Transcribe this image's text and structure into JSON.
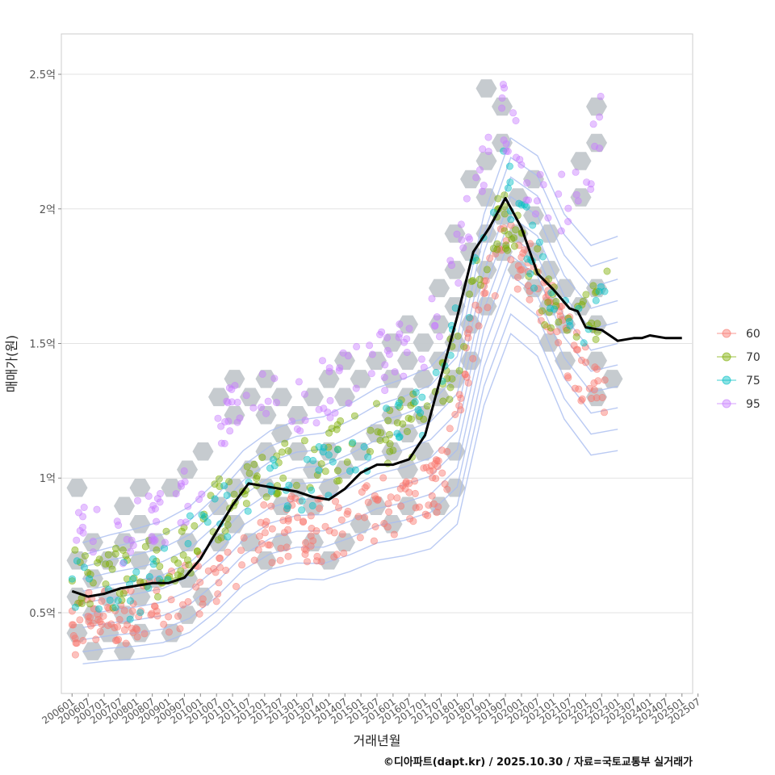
{
  "chart_data": {
    "type": "scatter",
    "title": "",
    "xlabel": "거래년월",
    "ylabel": "매매가(원)",
    "ylim": [
      0.2,
      2.65
    ],
    "x_range_months": [
      -4,
      232
    ],
    "y_ticks": [
      {
        "value": 0.5,
        "label": "0.5억"
      },
      {
        "value": 1.0,
        "label": "1억"
      },
      {
        "value": 1.5,
        "label": "1.5억"
      },
      {
        "value": 2.0,
        "label": "2억"
      },
      {
        "value": 2.5,
        "label": "2.5억"
      }
    ],
    "x_ticks": [
      "200601",
      "200607",
      "200701",
      "200707",
      "200801",
      "200807",
      "200901",
      "200907",
      "201001",
      "201007",
      "201101",
      "201107",
      "201201",
      "201207",
      "201301",
      "201307",
      "201401",
      "201407",
      "201501",
      "201507",
      "201601",
      "201607",
      "201701",
      "201707",
      "201801",
      "201807",
      "201901",
      "201907",
      "202001",
      "202007",
      "202101",
      "202107",
      "202201",
      "202207",
      "202301",
      "202307",
      "202401",
      "202407",
      "202501",
      "202507"
    ],
    "legend": {
      "position": "right",
      "entries": [
        {
          "name": "60",
          "color": "#F8766D"
        },
        {
          "name": "70",
          "color": "#7CAE00"
        },
        {
          "name": "75",
          "color": "#00BFC4"
        },
        {
          "name": "95",
          "color": "#C77CFF"
        }
      ]
    },
    "colors": {
      "hex": "#c3c8cc",
      "contour": "#a9bdf0",
      "trend": "#000000",
      "grid": "#e3e3e3"
    },
    "trend_line": {
      "name": "moving average price",
      "x_months": [
        0,
        6,
        12,
        18,
        24,
        30,
        36,
        42,
        48,
        54,
        60,
        66,
        72,
        78,
        84,
        90,
        96,
        102,
        108,
        114,
        120,
        126,
        132,
        138,
        144,
        150,
        156,
        162,
        168,
        174,
        180,
        186,
        189,
        192,
        198,
        204,
        210,
        213,
        216,
        222,
        228
      ],
      "values": [
        0.58,
        0.56,
        0.57,
        0.59,
        0.6,
        0.61,
        0.61,
        0.63,
        0.7,
        0.8,
        0.9,
        0.98,
        0.97,
        0.96,
        0.95,
        0.93,
        0.92,
        0.96,
        1.02,
        1.05,
        1.05,
        1.07,
        1.16,
        1.38,
        1.6,
        1.84,
        1.93,
        2.04,
        1.93,
        1.76,
        1.7,
        1.63,
        1.62,
        1.56,
        1.55,
        1.51,
        1.52,
        1.52,
        1.53,
        1.52,
        1.52
      ]
    },
    "series_centers": [
      {
        "name": "60",
        "points": [
          [
            0,
            0.45
          ],
          [
            10,
            0.48
          ],
          [
            20,
            0.5
          ],
          [
            30,
            0.52
          ],
          [
            40,
            0.55
          ],
          [
            50,
            0.62
          ],
          [
            60,
            0.7
          ],
          [
            70,
            0.78
          ],
          [
            80,
            0.82
          ],
          [
            90,
            0.8
          ],
          [
            100,
            0.83
          ],
          [
            110,
            0.88
          ],
          [
            120,
            0.9
          ],
          [
            130,
            0.95
          ],
          [
            140,
            1.0
          ],
          [
            150,
            1.55
          ],
          [
            160,
            1.85
          ],
          [
            170,
            1.8
          ],
          [
            180,
            1.6
          ],
          [
            190,
            1.4
          ],
          [
            200,
            1.35
          ]
        ]
      },
      {
        "name": "70",
        "points": [
          [
            0,
            0.62
          ],
          [
            10,
            0.63
          ],
          [
            20,
            0.64
          ],
          [
            30,
            0.66
          ],
          [
            40,
            0.72
          ],
          [
            50,
            0.82
          ],
          [
            60,
            0.95
          ],
          [
            70,
            1.0
          ],
          [
            80,
            1.02
          ],
          [
            90,
            1.05
          ],
          [
            100,
            1.1
          ],
          [
            110,
            1.15
          ],
          [
            120,
            1.18
          ],
          [
            130,
            1.2
          ],
          [
            140,
            1.35
          ],
          [
            150,
            1.7
          ],
          [
            160,
            1.95
          ],
          [
            170,
            1.85
          ],
          [
            180,
            1.6
          ],
          [
            190,
            1.55
          ],
          [
            200,
            1.65
          ]
        ]
      },
      {
        "name": "75",
        "points": [
          [
            0,
            0.6
          ],
          [
            10,
            0.6
          ],
          [
            20,
            0.58
          ],
          [
            30,
            0.62
          ],
          [
            40,
            0.7
          ],
          [
            50,
            0.82
          ],
          [
            60,
            0.92
          ],
          [
            70,
            0.98
          ],
          [
            80,
            0.98
          ],
          [
            90,
            1.0
          ],
          [
            100,
            1.08
          ],
          [
            110,
            1.12
          ],
          [
            120,
            1.18
          ],
          [
            130,
            1.22
          ],
          [
            140,
            1.4
          ],
          [
            150,
            1.75
          ],
          [
            160,
            2.15
          ],
          [
            170,
            1.9
          ],
          [
            180,
            1.62
          ],
          [
            190,
            1.55
          ],
          [
            200,
            1.65
          ]
        ]
      },
      {
        "name": "95",
        "points": [
          [
            0,
            0.85
          ],
          [
            10,
            0.82
          ],
          [
            20,
            0.8
          ],
          [
            30,
            0.85
          ],
          [
            40,
            0.9
          ],
          [
            50,
            1.05
          ],
          [
            60,
            1.3
          ],
          [
            70,
            1.3
          ],
          [
            80,
            1.25
          ],
          [
            90,
            1.3
          ],
          [
            100,
            1.35
          ],
          [
            110,
            1.4
          ],
          [
            120,
            1.45
          ],
          [
            130,
            1.5
          ],
          [
            140,
            1.65
          ],
          [
            150,
            2.05
          ],
          [
            160,
            2.4
          ],
          [
            170,
            2.1
          ],
          [
            180,
            2.0
          ],
          [
            190,
            2.05
          ],
          [
            200,
            2.4
          ]
        ]
      }
    ]
  },
  "caption": "©디아파트(dapt.kr) / 2025.10.30 / 자료=국토교통부 실거래가"
}
